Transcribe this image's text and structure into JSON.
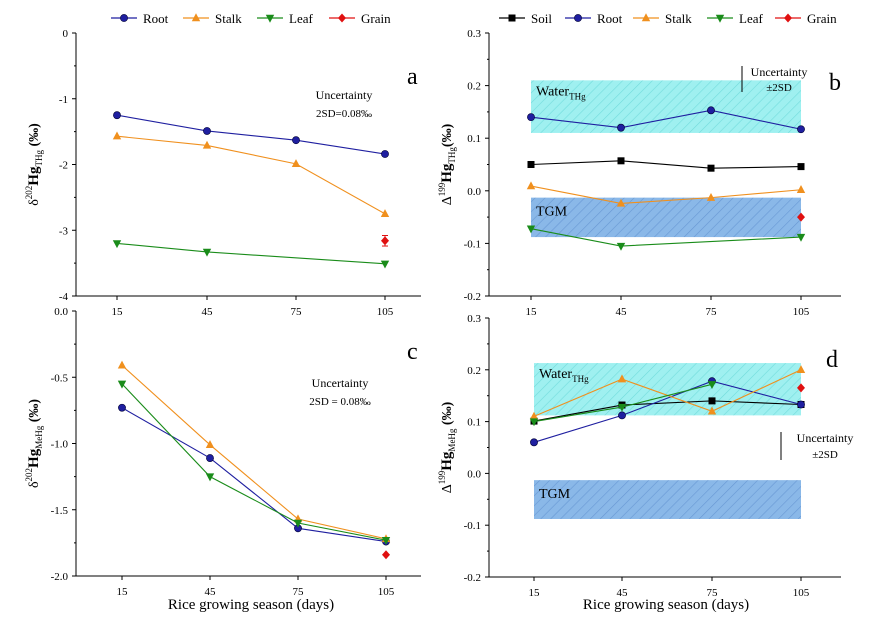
{
  "colors": {
    "root": "#1f1fa0",
    "stalk": "#f0901e",
    "leaf": "#1a8c1a",
    "grain": "#e01010",
    "soil": "#000000",
    "water_band": "#9ff0f0",
    "tgm_band": "#8ab8e8"
  },
  "x_axis_label": "Rice growing season (days)",
  "chart_data": [
    {
      "panel": "a",
      "type": "line",
      "x": [
        15,
        45,
        75,
        105
      ],
      "xticks": [
        "15",
        "45",
        "75",
        "105"
      ],
      "ylim": [
        -4,
        0
      ],
      "yticks": [
        "0",
        "-1",
        "-2",
        "-3",
        "-4"
      ],
      "ylabel_main": "δ",
      "ylabel_sup": "202",
      "ylabel_rest": "Hg",
      "ylabel_sub": "THg",
      "ylabel_unit": " (‰)",
      "legend": [
        {
          "name": "Root",
          "marker": "circle",
          "color": "#1f1fa0"
        },
        {
          "name": "Stalk",
          "marker": "triangle-up",
          "color": "#f0901e"
        },
        {
          "name": "Leaf",
          "marker": "triangle-down",
          "color": "#1a8c1a"
        },
        {
          "name": "Grain",
          "marker": "diamond",
          "color": "#e01010"
        }
      ],
      "series": [
        {
          "name": "Root",
          "values": [
            -1.25,
            -1.49,
            -1.63,
            -1.84
          ],
          "marker": "circle",
          "color": "#1f1fa0"
        },
        {
          "name": "Stalk",
          "values": [
            -1.57,
            -1.71,
            -1.99,
            -2.75
          ],
          "marker": "triangle-up",
          "color": "#f0901e"
        },
        {
          "name": "Leaf",
          "values": [
            -3.2,
            -3.33,
            null,
            -3.51
          ],
          "marker": "triangle-down",
          "color": "#1a8c1a",
          "line_to_end": true
        },
        {
          "name": "Grain",
          "values": [
            null,
            null,
            null,
            -3.16
          ],
          "marker": "diamond",
          "color": "#e01010",
          "error": 0.08
        }
      ],
      "annotation_lines": [
        "Uncertainty",
        "2SD=0.08‰"
      ],
      "panel_letter": "a"
    },
    {
      "panel": "b",
      "type": "line",
      "x": [
        15,
        45,
        75,
        105
      ],
      "xticks": [
        "15",
        "45",
        "75",
        "105"
      ],
      "ylim": [
        -0.2,
        0.3
      ],
      "yticks": [
        "0.3",
        "0.2",
        "0.1",
        "0.0",
        "-0.1",
        "-0.2"
      ],
      "ylabel_main": "Δ",
      "ylabel_sup": "199",
      "ylabel_rest": "Hg",
      "ylabel_sub": "THg",
      "ylabel_unit": "(‰)",
      "legend": [
        {
          "name": "Soil",
          "marker": "square",
          "color": "#000000"
        },
        {
          "name": "Root",
          "marker": "circle",
          "color": "#1f1fa0"
        },
        {
          "name": "Stalk",
          "marker": "triangle-up",
          "color": "#f0901e"
        },
        {
          "name": "Leaf",
          "marker": "triangle-down",
          "color": "#1a8c1a"
        },
        {
          "name": "Grain",
          "marker": "diamond",
          "color": "#e01010"
        }
      ],
      "series": [
        {
          "name": "Soil",
          "values": [
            0.05,
            0.057,
            0.043,
            0.046
          ],
          "marker": "square",
          "color": "#000000"
        },
        {
          "name": "Root",
          "values": [
            0.14,
            0.12,
            0.153,
            0.117
          ],
          "marker": "circle",
          "color": "#1f1fa0"
        },
        {
          "name": "Stalk",
          "values": [
            0.009,
            -0.024,
            -0.013,
            0.002
          ],
          "marker": "triangle-up",
          "color": "#f0901e"
        },
        {
          "name": "Leaf",
          "values": [
            -0.072,
            -0.105,
            null,
            -0.088
          ],
          "marker": "triangle-down",
          "color": "#1a8c1a"
        },
        {
          "name": "Grain",
          "values": [
            null,
            null,
            null,
            -0.05
          ],
          "marker": "diamond",
          "color": "#e01010"
        }
      ],
      "bands": [
        {
          "label_main": "Water",
          "label_sub": "THg",
          "ymin": 0.11,
          "ymax": 0.21,
          "fill": "#9ff0f0",
          "hatch": "#7fe0e0"
        },
        {
          "label_main": "TGM",
          "label_sub": "",
          "ymin": -0.088,
          "ymax": -0.013,
          "fill": "#8ab8e8",
          "hatch": "#6a98d8"
        }
      ],
      "annotation_lines": [
        "Uncertainty",
        "±2SD"
      ],
      "panel_letter": "b"
    },
    {
      "panel": "c",
      "type": "line",
      "x": [
        15,
        45,
        75,
        105
      ],
      "xticks": [
        "15",
        "45",
        "75",
        "105"
      ],
      "ylim": [
        -2.0,
        0.0
      ],
      "yticks": [
        "0.0",
        "-0.5",
        "-1.0",
        "-1.5",
        "-2.0"
      ],
      "ylabel_main": "δ",
      "ylabel_sup": "202",
      "ylabel_rest": "Hg",
      "ylabel_sub": "MeHg",
      "ylabel_unit": " (‰)",
      "series": [
        {
          "name": "Root",
          "values": [
            -0.73,
            -1.11,
            -1.64,
            -1.74
          ],
          "marker": "circle",
          "color": "#1f1fa0"
        },
        {
          "name": "Stalk",
          "values": [
            -0.41,
            -1.01,
            -1.57,
            -1.72
          ],
          "marker": "triangle-up",
          "color": "#f0901e"
        },
        {
          "name": "Leaf",
          "values": [
            -0.55,
            -1.25,
            -1.6,
            -1.73
          ],
          "marker": "triangle-down",
          "color": "#1a8c1a"
        },
        {
          "name": "Grain",
          "values": [
            null,
            null,
            null,
            -1.84
          ],
          "marker": "diamond",
          "color": "#e01010"
        }
      ],
      "annotation_lines": [
        "Uncertainty",
        "2SD = 0.08‰"
      ],
      "panel_letter": "c"
    },
    {
      "panel": "d",
      "type": "line",
      "x": [
        15,
        45,
        75,
        105
      ],
      "xticks": [
        "15",
        "45",
        "75",
        "105"
      ],
      "ylim": [
        -0.2,
        0.3
      ],
      "yticks": [
        "0.3",
        "0.2",
        "0.1",
        "0.0",
        "-0.1",
        "-0.2"
      ],
      "ylabel_main": "Δ",
      "ylabel_sup": "199",
      "ylabel_rest": "Hg",
      "ylabel_sub": "MeHg",
      "ylabel_unit": " (‰)",
      "series": [
        {
          "name": "Soil",
          "values": [
            0.101,
            0.132,
            0.14,
            0.133
          ],
          "marker": "square",
          "color": "#000000"
        },
        {
          "name": "Root",
          "values": [
            0.06,
            0.112,
            0.178,
            0.133
          ],
          "marker": "circle",
          "color": "#1f1fa0"
        },
        {
          "name": "Stalk",
          "values": [
            0.11,
            0.182,
            0.12,
            0.2
          ],
          "marker": "triangle-up",
          "color": "#f0901e"
        },
        {
          "name": "Leaf",
          "values": [
            0.1,
            0.128,
            0.172,
            null
          ],
          "marker": "triangle-down",
          "color": "#1a8c1a"
        },
        {
          "name": "Grain",
          "values": [
            null,
            null,
            null,
            0.165
          ],
          "marker": "diamond",
          "color": "#e01010"
        }
      ],
      "bands": [
        {
          "label_main": "Water",
          "label_sub": "THg",
          "ymin": 0.112,
          "ymax": 0.213,
          "fill": "#9ff0f0",
          "hatch": "#7fe0e0"
        },
        {
          "label_main": "TGM",
          "label_sub": "",
          "ymin": -0.088,
          "ymax": -0.013,
          "fill": "#8ab8e8",
          "hatch": "#6a98d8"
        }
      ],
      "annotation_lines": [
        "Uncertainty",
        "±2SD"
      ],
      "panel_letter": "d"
    }
  ]
}
